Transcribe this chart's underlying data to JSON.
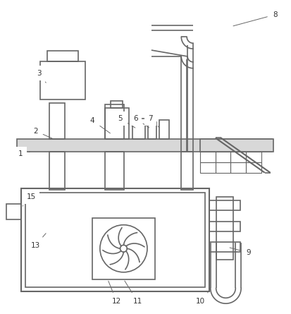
{
  "background_color": "#ffffff",
  "line_color": "#666666",
  "lw": 1.2,
  "label_fontsize": 7.5
}
